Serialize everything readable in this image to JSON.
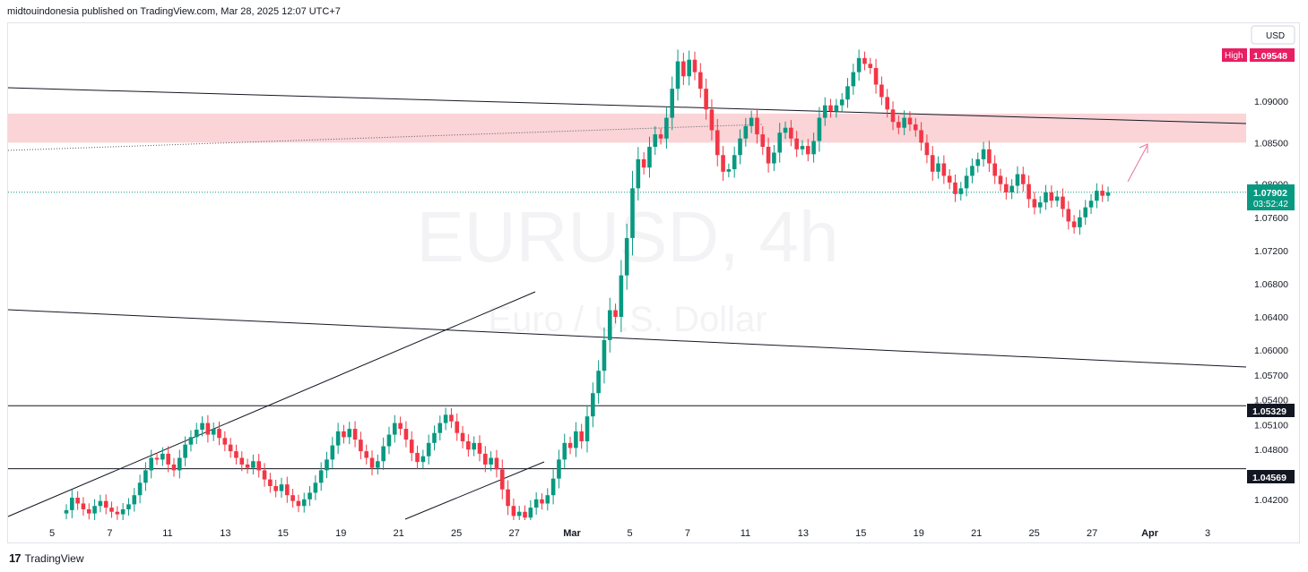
{
  "header": {
    "publisher_line": "midtouindonesia published on TradingView.com, Mar 28, 2025 12:07 UTC+7"
  },
  "footer": {
    "brand": "TradingView",
    "logo_glyph": "17"
  },
  "watermark": {
    "symbol": "EURUSD, 4h",
    "description": "Euro / U.S. Dollar"
  },
  "colors": {
    "up": "#089981",
    "down": "#f23645",
    "zone": "#f9c9cd",
    "high_badge": "#e91e63",
    "price_badge": "#089981",
    "line": "#131722",
    "arrow": "#e57399"
  },
  "chart_data": {
    "type": "candlestick",
    "symbol": "EURUSD",
    "timeframe": "4h",
    "currency_label": "USD",
    "ylim": [
      1.0395,
      1.0995
    ],
    "y_ticks": [
      "1.09000",
      "1.08500",
      "1.08000",
      "1.07600",
      "1.07200",
      "1.06800",
      "1.06400",
      "1.06000",
      "1.05700",
      "1.05400",
      "1.05100",
      "1.04800",
      "1.04500",
      "1.04200"
    ],
    "x_ticks": [
      "5",
      "7",
      "11",
      "13",
      "15",
      "19",
      "21",
      "25",
      "27",
      "Mar",
      "5",
      "7",
      "11",
      "13",
      "15",
      "19",
      "21",
      "25",
      "27",
      "Apr",
      "3"
    ],
    "high": {
      "label": "High",
      "value": "1.09548"
    },
    "last_price": {
      "value": "1.07902",
      "countdown": "03:52:42"
    },
    "level_labels": [
      "1.05329",
      "1.04569"
    ],
    "levels": [
      1.05329,
      1.04569
    ],
    "resistance_zone": [
      1.085,
      1.0885
    ],
    "closes": [
      1.0407,
      1.0422,
      1.0415,
      1.0408,
      1.0403,
      1.0412,
      1.0418,
      1.041,
      1.0405,
      1.0402,
      1.0408,
      1.0414,
      1.0425,
      1.044,
      1.0455,
      1.047,
      1.0468,
      1.0475,
      1.0462,
      1.0455,
      1.047,
      1.0486,
      1.0495,
      1.0504,
      1.0512,
      1.0498,
      1.0505,
      1.0494,
      1.0486,
      1.0478,
      1.047,
      1.0462,
      1.0458,
      1.0466,
      1.0455,
      1.0444,
      1.0436,
      1.043,
      1.0438,
      1.0425,
      1.0418,
      1.0412,
      1.042,
      1.0428,
      1.044,
      1.0455,
      1.0468,
      1.0485,
      1.0502,
      1.0495,
      1.0505,
      1.0492,
      1.0478,
      1.047,
      1.0458,
      1.0466,
      1.0484,
      1.0498,
      1.0512,
      1.0505,
      1.0492,
      1.0476,
      1.0465,
      1.0472,
      1.0488,
      1.05,
      1.0512,
      1.0522,
      1.0514,
      1.05,
      1.049,
      1.048,
      1.0488,
      1.0475,
      1.0462,
      1.047,
      1.0456,
      1.0432,
      1.0412,
      1.04,
      1.0405,
      1.0398,
      1.041,
      1.042,
      1.0415,
      1.0425,
      1.0445,
      1.0468,
      1.0488,
      1.0482,
      1.0502,
      1.049,
      1.052,
      1.0548,
      1.0575,
      1.0612,
      1.0648,
      1.064,
      1.069,
      1.0735,
      1.0795,
      1.083,
      1.082,
      1.0845,
      1.086,
      1.0855,
      1.088,
      1.0915,
      1.0948,
      1.093,
      1.095,
      1.0935,
      1.0915,
      1.089,
      1.0865,
      1.0835,
      1.0815,
      1.0818,
      1.0835,
      1.0855,
      1.087,
      1.088,
      1.086,
      1.0845,
      1.0825,
      1.0838,
      1.0862,
      1.0868,
      1.0855,
      1.0842,
      1.0846,
      1.0836,
      1.0852,
      1.088,
      1.0895,
      1.0888,
      1.0895,
      1.0902,
      1.0918,
      1.0935,
      1.0952,
      1.0945,
      1.094,
      1.092,
      1.0905,
      1.089,
      1.0875,
      1.0868,
      1.088,
      1.0872,
      1.0865,
      1.085,
      1.0835,
      1.0815,
      1.0825,
      1.081,
      1.0802,
      1.0788,
      1.0795,
      1.081,
      1.0822,
      1.083,
      1.0842,
      1.0825,
      1.081,
      1.08,
      1.079,
      1.0798,
      1.0812,
      1.08,
      1.0782,
      1.0772,
      1.0778,
      1.079,
      1.078,
      1.0785,
      1.077,
      1.0755,
      1.0748,
      1.076,
      1.0772,
      1.078,
      1.0792,
      1.0786,
      1.079
    ]
  }
}
